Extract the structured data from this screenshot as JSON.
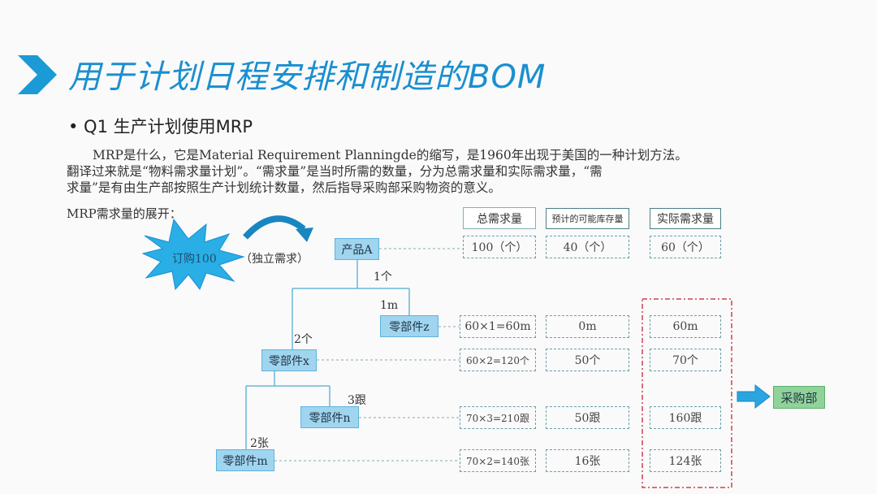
{
  "title": "用于计划日程安排和制造的BOM",
  "bullet": "• Q1 生产计划使用MRP",
  "paragraph": [
    "MRP是什么，它是Material Requirement Planningde的缩写，是1960年出现于美国的一种计划方法。",
    "翻译过来就是“物料需求量计划”。“需求量”是当时所需的数量，分为总需求量和实际需求量，“需",
    "求量”是有由生产部按照生产计划统计数量，然后指导采购部采购物资的意义。"
  ],
  "subheading": "MRP需求量的展开：",
  "order": {
    "label": "订购100",
    "note": "（独立需求）"
  },
  "headers": [
    "总需求量",
    "预计的可能库存量",
    "实际需求量"
  ],
  "nodes": [
    {
      "name": "产品A",
      "qty": "",
      "gross": "100（个）",
      "stock": "40（个）",
      "net": "60（个）"
    },
    {
      "name": "零部件z",
      "qty": "1m",
      "gross": "60×1=60m",
      "stock": "0m",
      "net": "60m"
    },
    {
      "name": "零部件x",
      "qty": "2个",
      "gross": "60×2=120个",
      "stock": "50个",
      "net": "70个"
    },
    {
      "name": "零部件n",
      "qty": "3跟",
      "gross": "70×3=210跟",
      "stock": "50跟",
      "net": "160跟"
    },
    {
      "name": "零部件m",
      "qty": "2张",
      "gross": "70×2=140张",
      "stock": "16张",
      "net": "124张"
    }
  ],
  "edge_label_a": "1个",
  "target": "采购部",
  "colors": {
    "accent": "#1a8fd0",
    "node": "#9fd5ef",
    "target": "#8fd39a",
    "highlight": "#d04050"
  }
}
